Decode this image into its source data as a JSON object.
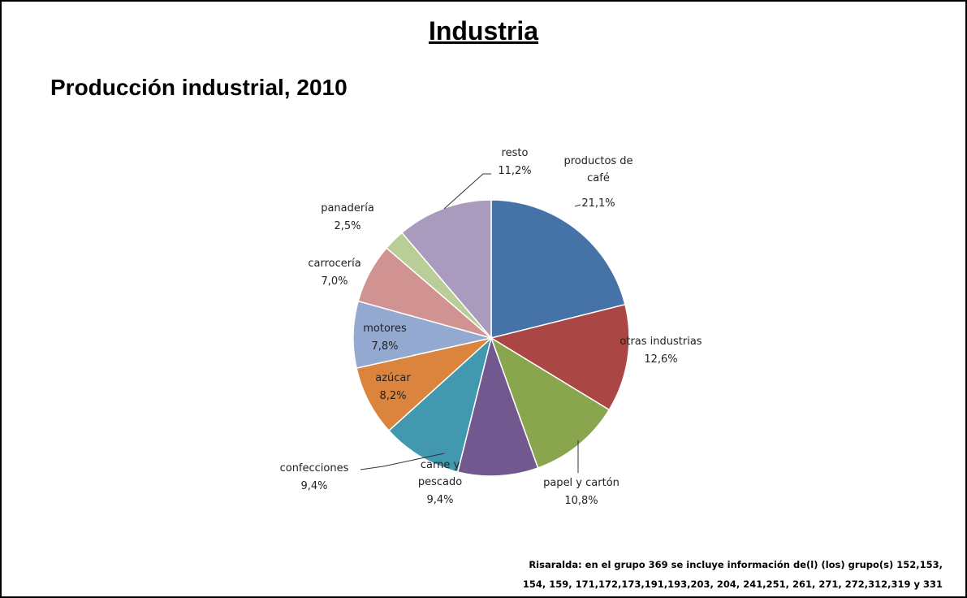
{
  "header": {
    "title": "Industria"
  },
  "chart_data": {
    "type": "pie",
    "title": "Producción industrial, 2010",
    "categories": [
      "productos de café",
      "otras industrias",
      "papel y cartón",
      "carne y pescado",
      "confecciones",
      "azúcar",
      "motores",
      "carrocería",
      "panadería",
      "resto"
    ],
    "values": [
      21.1,
      12.6,
      10.8,
      9.4,
      9.4,
      8.2,
      7.8,
      7.0,
      2.5,
      11.2
    ],
    "value_labels": [
      "21,1%",
      "12,6%",
      "10,8%",
      "9,4%",
      "9,4%",
      "8,2%",
      "7,8%",
      "7,0%",
      "2,5%",
      "11,2%"
    ],
    "colors": [
      "#4572a7",
      "#aa4643",
      "#89a54e",
      "#71588f",
      "#4198af",
      "#db843d",
      "#93a9cf",
      "#d19392",
      "#b9cd96",
      "#a99bbd"
    ]
  },
  "note": {
    "lines": [
      "Risaralda: en el grupo 369 se incluye información de(l) (los) grupo(s) 152,153,",
      "154, 159, 171,172,173,191,193,203, 204, 241,251, 261, 271, 272,312,319 y 331"
    ]
  }
}
